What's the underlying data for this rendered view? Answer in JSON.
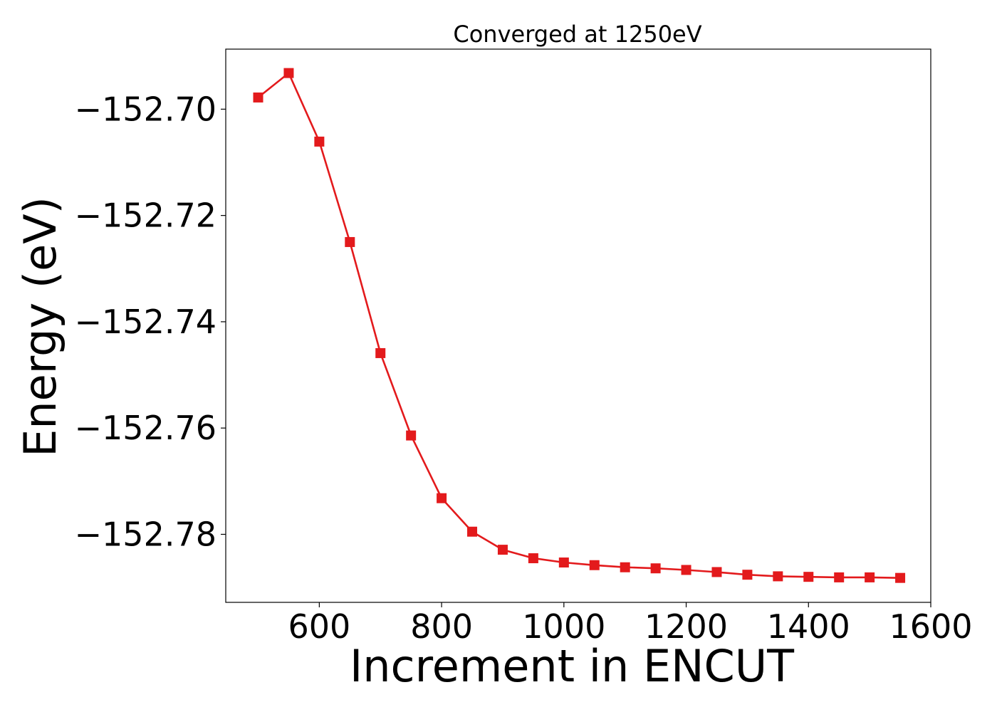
{
  "chart_data": {
    "type": "line",
    "title": "Converged at 1250eV",
    "xlabel": "Increment in ENCUT",
    "ylabel": "Energy (eV)",
    "xlim": [
      447,
      1600
    ],
    "ylim": [
      -152.7928,
      -152.6887
    ],
    "x_ticks": [
      600,
      800,
      1000,
      1200,
      1400,
      1600
    ],
    "x_tick_labels": [
      "600",
      "800",
      "1000",
      "1200",
      "1400",
      "1600"
    ],
    "y_ticks": [
      -152.7,
      -152.72,
      -152.74,
      -152.76,
      -152.78
    ],
    "y_tick_labels": [
      "−152.70",
      "−152.72",
      "−152.74",
      "−152.76",
      "−152.78"
    ],
    "grid": false,
    "series": [
      {
        "color": "#e31a1c",
        "marker": "square",
        "x": [
          500,
          550,
          600,
          650,
          700,
          750,
          800,
          850,
          900,
          950,
          1000,
          1050,
          1100,
          1150,
          1200,
          1250,
          1300,
          1350,
          1400,
          1450,
          1500,
          1550
        ],
        "y": [
          -152.6978,
          -152.6932,
          -152.7061,
          -152.725,
          -152.7459,
          -152.7614,
          -152.7732,
          -152.7795,
          -152.7829,
          -152.7845,
          -152.7853,
          -152.7858,
          -152.7862,
          -152.7864,
          -152.7867,
          -152.7871,
          -152.7876,
          -152.7879,
          -152.788,
          -152.7881,
          -152.7881,
          -152.7882
        ]
      }
    ]
  }
}
